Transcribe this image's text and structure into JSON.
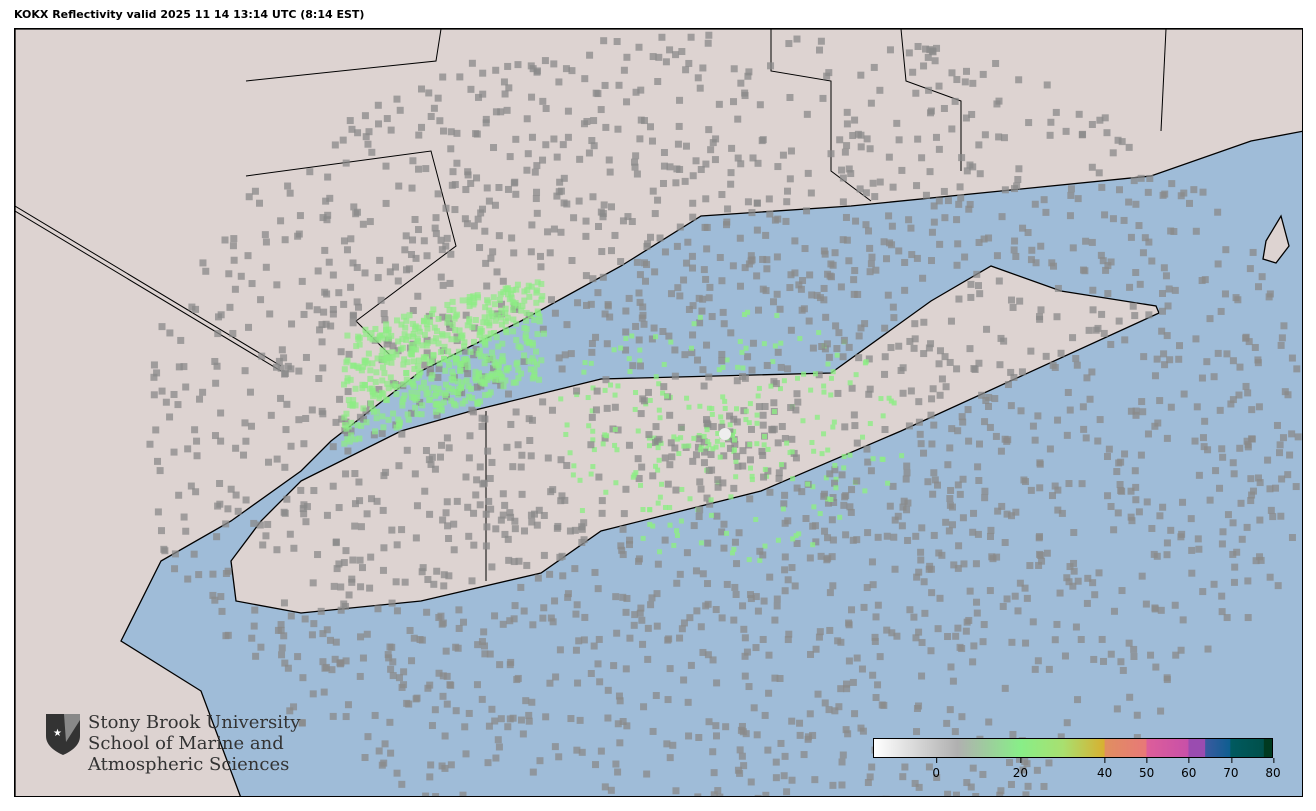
{
  "title": "KOKX Reflectivity valid 2025 11 14 13:14 UTC (8:14 EST)",
  "radar_site": "KOKX",
  "colors": {
    "water": "#9fbcd8",
    "land": "#ddd3d1",
    "echo_gray": "#8a8a8a",
    "echo_green": "#8ded84"
  },
  "colorbar": {
    "range": [
      -15,
      80
    ],
    "ticks": [
      0,
      20,
      40,
      50,
      60,
      70,
      80
    ],
    "stops": [
      {
        "value": -15,
        "color": "#ffffff"
      },
      {
        "value": 5,
        "color": "#b0b0b0"
      },
      {
        "value": 20,
        "color": "#88ee88"
      },
      {
        "value": 30,
        "color": "#a8e070"
      },
      {
        "value": 40,
        "color": "#d8b030"
      },
      {
        "value": 40.1,
        "color": "#e08f60"
      },
      {
        "value": 50,
        "color": "#e87878"
      },
      {
        "value": 50.1,
        "color": "#dd5e9a"
      },
      {
        "value": 60,
        "color": "#c850a8"
      },
      {
        "value": 60.1,
        "color": "#9a4cb0"
      },
      {
        "value": 64,
        "color": "#9a4cb0"
      },
      {
        "value": 64.1,
        "color": "#3a5aa0"
      },
      {
        "value": 70,
        "color": "#0e5e90"
      },
      {
        "value": 70.1,
        "color": "#005a60"
      },
      {
        "value": 78,
        "color": "#00504a"
      },
      {
        "value": 78.1,
        "color": "#003a20"
      },
      {
        "value": 80,
        "color": "#003a20"
      }
    ]
  },
  "logo": {
    "lines": [
      "Stony Brook University",
      "School of Marine and",
      "Atmospheric Sciences"
    ]
  }
}
